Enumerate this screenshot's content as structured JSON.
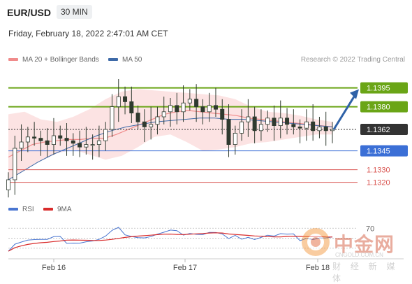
{
  "header": {
    "symbol": "EUR/USD",
    "timeframe": "30 MIN",
    "datetime": "Friday, February 18, 2022 2:47:01 AM CET"
  },
  "legend": {
    "ma20_label": "MA 20 + Bollinger Bands",
    "ma50_label": "MA 50",
    "copyright": "Research © 2022 Trading Central",
    "rsi_label": "RSI",
    "rsi_ma_label": "9MA"
  },
  "colors": {
    "green_level": "#6aa516",
    "blue_level": "#3b6fd6",
    "red_level": "#d9534f",
    "dark_level": "#333333",
    "bollinger_fill": "#fbdada",
    "ma20": "#f08b8b",
    "ma50": "#3e6aa8",
    "candle": "#2f3a2f",
    "arrow": "#2f62a8",
    "rsi": "#4a76d1",
    "rsi_ma": "#d92b2b"
  },
  "watermark": {
    "logo_icon": "cngold-logo-icon",
    "cn_text": "中金网",
    "url": "CNGOLD.COM.CN",
    "sub": "财 经 新 媒 体"
  },
  "chart_data": {
    "type": "candlestick",
    "symbol": "EUR/USD",
    "interval": "30 MIN",
    "x_labels": [
      "Feb 16",
      "Feb 17",
      "Feb 18"
    ],
    "ylim": [
      1.1312,
      1.1407
    ],
    "levels": [
      {
        "value": 1.1395,
        "label": "1.1395",
        "kind": "resistance",
        "color": "#6aa516"
      },
      {
        "value": 1.138,
        "label": "1.1380",
        "kind": "resistance",
        "color": "#6aa516"
      },
      {
        "value": 1.1362,
        "label": "1.1362",
        "kind": "last-price",
        "color": "#333333"
      },
      {
        "value": 1.1345,
        "label": "1.1345",
        "kind": "pivot",
        "color": "#3b6fd6"
      },
      {
        "value": 1.133,
        "label": "1.1330",
        "kind": "support",
        "color": "#d9534f"
      },
      {
        "value": 1.132,
        "label": "1.1320",
        "kind": "support",
        "color": "#d9534f"
      }
    ],
    "price_series": [
      1.1322,
      1.1347,
      1.1352,
      1.1356,
      1.1355,
      1.1353,
      1.135,
      1.1357,
      1.1355,
      1.1353,
      1.1351,
      1.1348,
      1.135,
      1.135,
      1.1353,
      1.1362,
      1.138,
      1.1388,
      1.1384,
      1.1375,
      1.1368,
      1.1364,
      1.1366,
      1.1372,
      1.1376,
      1.1381,
      1.1376,
      1.1383,
      1.1386,
      1.138,
      1.1376,
      1.1381,
      1.1378,
      1.137,
      1.135,
      1.1359,
      1.1368,
      1.1372,
      1.1361,
      1.1366,
      1.1371,
      1.1365,
      1.1371,
      1.1366,
      1.1364,
      1.1363,
      1.1368,
      1.1361,
      1.1364,
      1.1361,
      1.1362
    ],
    "forecast_target": 1.1395,
    "ma20": [
      1.134,
      1.1345,
      1.135,
      1.1352,
      1.1353,
      1.1354,
      1.1354,
      1.1355,
      1.1355,
      1.1358,
      1.1362,
      1.1366,
      1.137,
      1.1374,
      1.1376,
      1.1377,
      1.1376,
      1.1375,
      1.1374,
      1.1373,
      1.1371,
      1.137,
      1.1369,
      1.1368,
      1.1367,
      1.1366,
      1.1365,
      1.1364
    ],
    "ma50": [
      1.1322,
      1.1329,
      1.1336,
      1.1342,
      1.1347,
      1.1352,
      1.1357,
      1.1361,
      1.1364,
      1.1366,
      1.1368,
      1.1369,
      1.137,
      1.1371,
      1.1371,
      1.137,
      1.137,
      1.1369,
      1.1368,
      1.1367,
      1.1366,
      1.1365,
      1.1364
    ],
    "bollinger_upper": [
      1.1374,
      1.1376,
      1.137,
      1.1368,
      1.1372,
      1.1378,
      1.1386,
      1.1392,
      1.1394,
      1.1393,
      1.1392,
      1.1391,
      1.139,
      1.1389,
      1.1386,
      1.138,
      1.1376,
      1.1375,
      1.1373,
      1.137,
      1.1368
    ],
    "bollinger_lower": [
      1.1322,
      1.133,
      1.1337,
      1.1343,
      1.1346,
      1.1342,
      1.1338,
      1.1341,
      1.1348,
      1.1356,
      1.1358,
      1.1352,
      1.1345,
      1.1346,
      1.1348,
      1.1351,
      1.1352,
      1.1354,
      1.1356,
      1.1358,
      1.1358
    ],
    "rsi_panel": {
      "level_label": "70",
      "series_names": [
        "RSI",
        "9MA"
      ]
    }
  }
}
